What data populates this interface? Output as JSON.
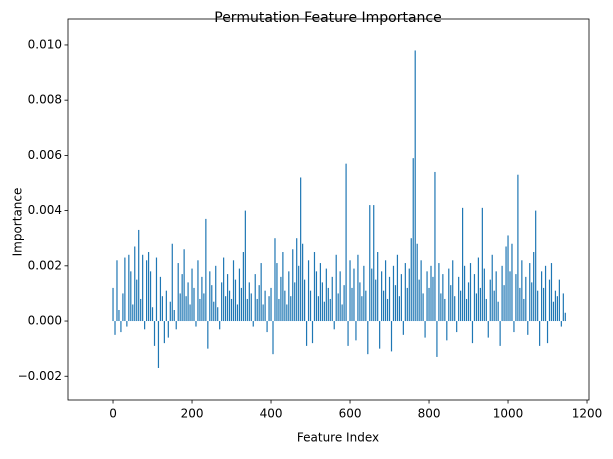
{
  "chart_data": {
    "type": "bar",
    "title": "Permutation Feature Importance",
    "xlabel": "Feature Index",
    "ylabel": "Importance",
    "color": "#1f77b4",
    "x": [
      0,
      5,
      10,
      15,
      20,
      25,
      30,
      35,
      40,
      45,
      50,
      55,
      60,
      65,
      70,
      75,
      80,
      85,
      90,
      95,
      100,
      105,
      110,
      115,
      120,
      125,
      130,
      135,
      140,
      145,
      150,
      155,
      160,
      165,
      170,
      175,
      180,
      185,
      190,
      195,
      200,
      205,
      210,
      215,
      220,
      225,
      230,
      235,
      240,
      245,
      250,
      255,
      260,
      265,
      270,
      275,
      280,
      285,
      290,
      295,
      300,
      305,
      310,
      315,
      320,
      325,
      330,
      335,
      340,
      345,
      350,
      355,
      360,
      365,
      370,
      375,
      380,
      385,
      390,
      395,
      400,
      405,
      410,
      415,
      420,
      425,
      430,
      435,
      440,
      445,
      450,
      455,
      460,
      465,
      470,
      475,
      480,
      485,
      490,
      495,
      500,
      505,
      510,
      515,
      520,
      525,
      530,
      535,
      540,
      545,
      550,
      555,
      560,
      565,
      570,
      575,
      580,
      585,
      590,
      595,
      600,
      605,
      610,
      615,
      620,
      625,
      630,
      635,
      640,
      645,
      650,
      655,
      660,
      665,
      670,
      675,
      680,
      685,
      690,
      695,
      700,
      705,
      710,
      715,
      720,
      725,
      730,
      735,
      740,
      745,
      750,
      755,
      760,
      765,
      770,
      775,
      780,
      785,
      790,
      795,
      800,
      805,
      810,
      815,
      820,
      825,
      830,
      835,
      840,
      845,
      850,
      855,
      860,
      865,
      870,
      875,
      880,
      885,
      890,
      895,
      900,
      905,
      910,
      915,
      920,
      925,
      930,
      935,
      940,
      945,
      950,
      955,
      960,
      965,
      970,
      975,
      980,
      985,
      990,
      995,
      1000,
      1005,
      1010,
      1015,
      1020,
      1025,
      1030,
      1035,
      1040,
      1045,
      1050,
      1055,
      1060,
      1065,
      1070,
      1075,
      1080,
      1085,
      1090,
      1095,
      1100,
      1105,
      1110,
      1115,
      1120,
      1125,
      1130,
      1135,
      1140,
      1145
    ],
    "values": [
      0.0012,
      -0.0005,
      0.0022,
      0.0004,
      -0.0004,
      0.001,
      0.0023,
      -0.0002,
      0.0024,
      0.0018,
      0.0006,
      0.0027,
      0.0015,
      0.0033,
      0.0008,
      0.0024,
      -0.0003,
      0.0022,
      0.0025,
      0.0018,
      0.0005,
      -0.0009,
      0.0023,
      -0.0017,
      0.0016,
      0.0009,
      -0.0008,
      0.0011,
      -0.0006,
      0.0007,
      0.0028,
      0.0004,
      -0.0003,
      0.0021,
      0.001,
      0.0017,
      0.0026,
      0.0009,
      0.0014,
      0.0006,
      0.0019,
      0.0012,
      -0.0002,
      0.0022,
      0.0008,
      0.0016,
      0.001,
      0.0037,
      -0.001,
      0.0018,
      0.0013,
      0.0007,
      0.002,
      0.0005,
      -0.0003,
      0.0014,
      0.0023,
      0.0009,
      0.0017,
      0.0011,
      0.0008,
      0.0022,
      0.0015,
      0.0006,
      0.0019,
      0.0012,
      0.0025,
      0.004,
      0.0008,
      0.0014,
      0.001,
      -0.0002,
      0.0017,
      0.0008,
      0.0013,
      0.0021,
      0.0006,
      0.0011,
      -0.0004,
      0.0009,
      0.0012,
      -0.0012,
      0.003,
      0.0021,
      0.0008,
      0.0016,
      0.0025,
      0.0011,
      0.0006,
      0.0018,
      0.0009,
      0.0026,
      0.0014,
      0.003,
      0.002,
      0.0052,
      0.0028,
      0.0015,
      -0.0009,
      0.0022,
      0.0011,
      -0.0008,
      0.0025,
      0.0018,
      0.0009,
      0.0021,
      0.0014,
      0.0007,
      0.0019,
      0.0012,
      0.0008,
      0.0016,
      -0.0003,
      0.0024,
      0.001,
      0.0018,
      0.0006,
      0.0013,
      0.0057,
      -0.0009,
      0.0022,
      0.0012,
      0.0019,
      -0.0007,
      0.0024,
      0.0014,
      0.0009,
      0.002,
      0.0011,
      -0.0012,
      0.0042,
      0.0019,
      0.0042,
      0.0015,
      0.0025,
      -0.001,
      0.0018,
      0.0011,
      0.0022,
      0.0008,
      0.0016,
      -0.0011,
      0.002,
      0.0013,
      0.0024,
      0.0009,
      0.0017,
      -0.0005,
      0.0021,
      0.0012,
      0.0019,
      0.003,
      0.0059,
      0.0098,
      0.0028,
      0.0015,
      0.0022,
      0.001,
      -0.0006,
      0.0018,
      0.0012,
      0.002,
      0.0016,
      0.0054,
      -0.0013,
      0.0021,
      0.001,
      0.0017,
      0.0008,
      -0.0007,
      0.0019,
      0.0013,
      0.0022,
      0.0009,
      -0.0004,
      0.0016,
      0.0011,
      0.0041,
      0.002,
      0.0008,
      0.0014,
      0.0021,
      -0.0008,
      0.0017,
      0.001,
      0.0023,
      0.0012,
      0.0041,
      0.0019,
      0.0008,
      -0.0006,
      0.0015,
      0.0024,
      0.0011,
      0.0018,
      0.0007,
      -0.0009,
      0.002,
      0.0013,
      0.0027,
      0.0031,
      0.0018,
      0.0028,
      -0.0004,
      0.0017,
      0.0053,
      0.0012,
      0.0022,
      0.0008,
      0.0016,
      -0.0005,
      0.0021,
      0.0014,
      0.0025,
      0.004,
      0.0011,
      -0.0009,
      0.0018,
      0.0012,
      0.002,
      -0.0008,
      0.0015,
      0.0021,
      0.0007,
      0.0011,
      0.0009,
      0.0015,
      -0.0002,
      0.001,
      0.0003
    ],
    "xlim": [
      -114,
      1205
    ],
    "xticks": [
      0,
      200,
      400,
      600,
      800,
      1000,
      1200
    ],
    "ylim": [
      -0.00286,
      0.01094
    ],
    "yticks": [
      {
        "value": -0.002,
        "label": "−0.002"
      },
      {
        "value": 0,
        "label": "0.000"
      },
      {
        "value": 0.002,
        "label": "0.002"
      },
      {
        "value": 0.004,
        "label": "0.004"
      },
      {
        "value": 0.006,
        "label": "0.006"
      },
      {
        "value": 0.008,
        "label": "0.008"
      },
      {
        "value": 0.01,
        "label": "0.010"
      }
    ]
  }
}
